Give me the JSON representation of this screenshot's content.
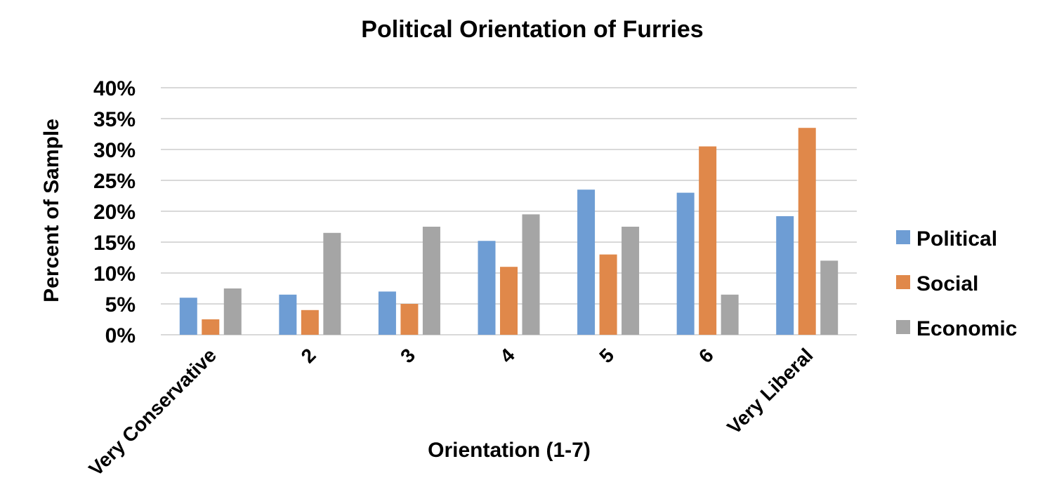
{
  "chart_data": {
    "type": "bar",
    "title": "Political Orientation of Furries",
    "xlabel": "Orientation (1-7)",
    "ylabel": "Percent of Sample",
    "categories": [
      "Very Conservative",
      "2",
      "3",
      "4",
      "5",
      "6",
      "Very Liberal"
    ],
    "series": [
      {
        "name": "Political",
        "color": "#6E9DD4",
        "values": [
          6,
          6.5,
          7,
          15.2,
          23.5,
          23,
          19.2
        ]
      },
      {
        "name": "Social",
        "color": "#E0884A",
        "values": [
          2.5,
          4,
          5,
          11,
          13,
          30.5,
          33.5
        ]
      },
      {
        "name": "Economic",
        "color": "#A5A5A5",
        "values": [
          7.5,
          16.5,
          17.5,
          19.5,
          17.5,
          6.5,
          12
        ]
      }
    ],
    "ylim": [
      0,
      40
    ],
    "yticks": [
      0,
      5,
      10,
      15,
      20,
      25,
      30,
      35,
      40
    ],
    "ytick_labels": [
      "0%",
      "5%",
      "10%",
      "15%",
      "20%",
      "25%",
      "30%",
      "35%",
      "40%"
    ],
    "grid": true,
    "gridline_color": "#D9D9D9",
    "legend_position": "right"
  }
}
